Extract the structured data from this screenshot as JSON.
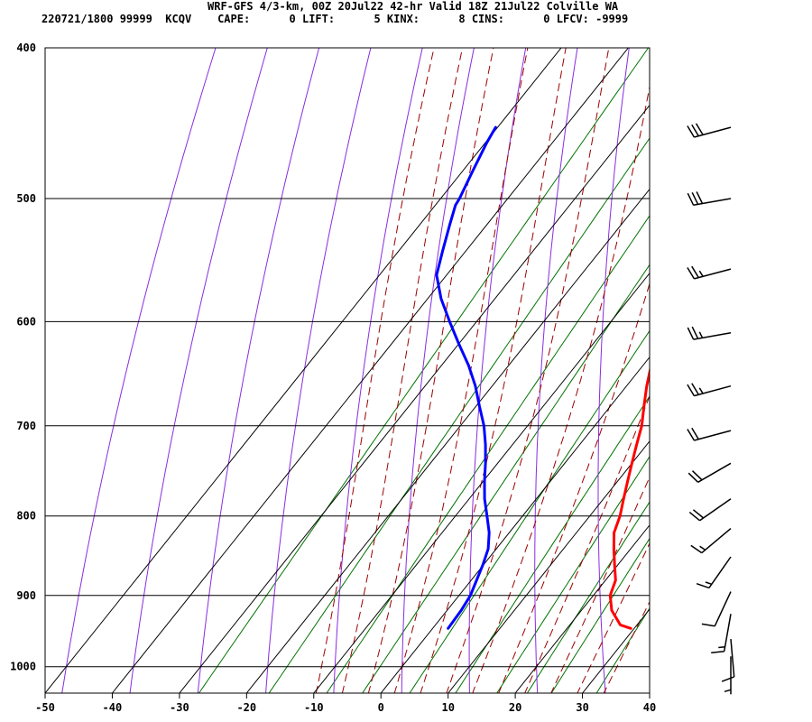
{
  "header": {
    "title": "WRF-GFS 4/3-km, 00Z 20Jul22 42-hr Valid 18Z 21Jul22 Colville WA",
    "indices": "220721/1800 99999  KCQV    CAPE:      0 LIFT:      5 KINX:      8 CINS:      0 LFCV: -9999"
  },
  "chart_data": {
    "type": "skew-t",
    "x_ticks": [
      -50,
      -40,
      -30,
      -20,
      -10,
      0,
      10,
      20,
      30,
      40
    ],
    "y_ticks": [
      400,
      500,
      600,
      700,
      800,
      900,
      1000
    ],
    "xlim": [
      -50,
      40
    ],
    "ylim": [
      400,
      1040
    ],
    "grid": true,
    "series": [
      {
        "kind": "temperature",
        "color": "#ff0000",
        "points": [
          [
            945,
            29.5
          ],
          [
            940,
            27.5
          ],
          [
            920,
            24.5
          ],
          [
            900,
            22.5
          ],
          [
            880,
            21.5
          ],
          [
            860,
            19.5
          ],
          [
            840,
            17.5
          ],
          [
            820,
            15.6
          ],
          [
            800,
            14.5
          ],
          [
            780,
            13.0
          ],
          [
            760,
            11.5
          ],
          [
            740,
            10.0
          ],
          [
            720,
            8.5
          ],
          [
            700,
            7.0
          ],
          [
            680,
            5.0
          ],
          [
            660,
            3.0
          ],
          [
            640,
            1.2
          ],
          [
            620,
            -0.7
          ],
          [
            600,
            -2.5
          ],
          [
            580,
            -4.6
          ],
          [
            560,
            -6.8
          ],
          [
            540,
            -9.0
          ],
          [
            520,
            -11.3
          ],
          [
            500,
            -13.6
          ],
          [
            480,
            -15.6
          ],
          [
            460,
            -17.7
          ],
          [
            450,
            -18.8
          ]
        ]
      },
      {
        "kind": "dewpoint",
        "color": "#0000ff",
        "points": [
          [
            945,
            2.3
          ],
          [
            920,
            2.1
          ],
          [
            900,
            1.7
          ],
          [
            880,
            0.8
          ],
          [
            860,
            -0.1
          ],
          [
            840,
            -1.2
          ],
          [
            820,
            -3.0
          ],
          [
            800,
            -5.3
          ],
          [
            780,
            -7.7
          ],
          [
            760,
            -9.8
          ],
          [
            740,
            -11.8
          ],
          [
            720,
            -14.0
          ],
          [
            700,
            -16.5
          ],
          [
            680,
            -19.5
          ],
          [
            660,
            -22.5
          ],
          [
            640,
            -26.0
          ],
          [
            620,
            -30.0
          ],
          [
            600,
            -34.0
          ],
          [
            580,
            -38.0
          ],
          [
            560,
            -41.5
          ],
          [
            540,
            -43.5
          ],
          [
            520,
            -45.5
          ],
          [
            505,
            -47.0
          ],
          [
            500,
            -47.2
          ],
          [
            480,
            -48.5
          ],
          [
            460,
            -49.8
          ],
          [
            450,
            -50.3
          ]
        ]
      }
    ],
    "guide_lines": {
      "isotherms_C": [
        -50,
        -40,
        -30,
        -20,
        -10,
        0,
        10,
        20,
        30,
        40
      ],
      "dry_adiabats_C_at_1000": [
        -50,
        -40,
        -30,
        -20,
        -10,
        0,
        10,
        20,
        30,
        40,
        50,
        60
      ],
      "moist_adiabats_C_at_1000": [
        -12,
        -8,
        -4,
        0,
        4,
        8,
        12,
        16,
        20,
        24,
        28,
        32
      ],
      "mixing_ratio_lines_gkg": [
        0.4,
        1,
        2,
        3,
        5,
        8,
        12,
        16,
        20,
        30
      ]
    },
    "wind_barbs": [
      {
        "p": 450,
        "speed_kt": 30,
        "dir_deg": 255
      },
      {
        "p": 500,
        "speed_kt": 30,
        "dir_deg": 260
      },
      {
        "p": 555,
        "speed_kt": 25,
        "dir_deg": 255
      },
      {
        "p": 610,
        "speed_kt": 25,
        "dir_deg": 260
      },
      {
        "p": 660,
        "speed_kt": 25,
        "dir_deg": 255
      },
      {
        "p": 705,
        "speed_kt": 20,
        "dir_deg": 255
      },
      {
        "p": 740,
        "speed_kt": 20,
        "dir_deg": 240
      },
      {
        "p": 780,
        "speed_kt": 20,
        "dir_deg": 235
      },
      {
        "p": 815,
        "speed_kt": 15,
        "dir_deg": 230
      },
      {
        "p": 850,
        "speed_kt": 15,
        "dir_deg": 215
      },
      {
        "p": 895,
        "speed_kt": 10,
        "dir_deg": 205
      },
      {
        "p": 925,
        "speed_kt": 15,
        "dir_deg": 190
      },
      {
        "p": 960,
        "speed_kt": 10,
        "dir_deg": 175
      },
      {
        "p": 985,
        "speed_kt": 5,
        "dir_deg": 180
      }
    ],
    "colors": {
      "isotherm": "#000000",
      "dry_adiabat": "#8a2be2",
      "moist_adiabat": "#9b0000",
      "mixing_ratio": "#007300"
    }
  }
}
